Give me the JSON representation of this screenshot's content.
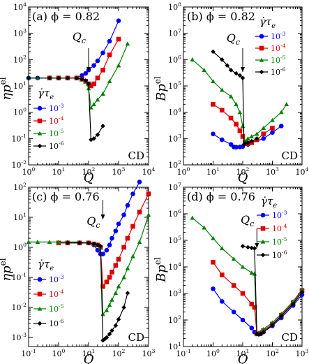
{
  "chart_data": [
    {
      "type": "line",
      "panel_label": "(a)",
      "phi_text": "ϕ = 0.82",
      "corner_label": "CD",
      "xlabel": "Q",
      "ylabel": "ηp^el",
      "xlim": [
        1,
        10000
      ],
      "ylim": [
        0.01,
        10000
      ],
      "xscale": "log",
      "yscale": "log",
      "x_tick_labels": [
        "10^0",
        "10^1",
        "10^2",
        "10^3",
        "10^4"
      ],
      "y_tick_labels": [
        "10^-2",
        "10^-1",
        "10^0",
        "10^1",
        "10^2",
        "10^3",
        "10^4"
      ],
      "annotation": {
        "text": "Qc",
        "x": 100
      },
      "legend": {
        "title": "γ̇τe",
        "placement": "center-left"
      },
      "series": [
        {
          "name": "10^-3",
          "color": "#0000ff",
          "marker": "circle",
          "x": [
            1,
            2,
            5,
            10,
            20,
            40,
            60,
            80,
            100,
            150,
            200,
            300,
            500,
            1000
          ],
          "y": [
            20,
            20,
            20,
            20,
            20,
            20,
            25,
            30,
            40,
            60,
            90,
            180,
            500,
            3000
          ]
        },
        {
          "name": "10^-4",
          "color": "#dd0000",
          "marker": "square",
          "x": [
            5,
            10,
            20,
            40,
            60,
            80,
            100,
            120,
            150,
            200,
            300,
            500,
            1000
          ],
          "y": [
            20,
            20,
            20,
            20,
            18,
            15,
            12,
            10,
            12,
            20,
            40,
            150,
            600
          ]
        },
        {
          "name": "10^-5",
          "color": "#008000",
          "marker": "triangle",
          "x": [
            1,
            2,
            5,
            10,
            20,
            40,
            60,
            80,
            100,
            120,
            150,
            200,
            300,
            500,
            1000,
            2000
          ],
          "y": [
            20,
            20,
            20,
            20,
            20,
            20,
            18,
            15,
            8,
            1.5,
            2,
            3,
            5,
            15,
            60,
            400
          ]
        },
        {
          "name": "10^-6",
          "color": "#000000",
          "marker": "diamond",
          "x": [
            1,
            5,
            10,
            20,
            40,
            60,
            80,
            100,
            120,
            150,
            200,
            300
          ],
          "y": [
            20,
            20,
            20,
            20,
            20,
            18,
            16,
            12,
            0.09,
            0.1,
            0.14,
            0.3
          ]
        }
      ]
    },
    {
      "type": "line",
      "panel_label": "(b)",
      "phi_text": "ϕ = 0.82",
      "corner_label": "CD",
      "xlabel": "Q",
      "ylabel": "Bp^el",
      "xlim": [
        1,
        10000
      ],
      "ylim": [
        100,
        100000000
      ],
      "xscale": "log",
      "yscale": "log",
      "x_tick_labels": [
        "10^0",
        "10^1",
        "10^2",
        "10^3",
        "10^4"
      ],
      "y_tick_labels": [
        "10^2",
        "10^3",
        "10^4",
        "10^5",
        "10^6",
        "10^7",
        "10^8"
      ],
      "annotation": {
        "text": "Qc",
        "x": 100
      },
      "legend": {
        "title": "γ̇τe",
        "placement": "top-right"
      },
      "series": [
        {
          "name": "10^-3",
          "color": "#0000ff",
          "marker": "circle",
          "x": [
            10,
            20,
            40,
            50,
            60,
            80,
            100,
            150,
            200,
            500,
            1000,
            2000
          ],
          "y": [
            1500,
            900,
            600,
            480,
            470,
            480,
            500,
            600,
            700,
            1000,
            1700,
            3000
          ]
        },
        {
          "name": "10^-4",
          "color": "#dd0000",
          "marker": "square",
          "x": [
            10,
            20,
            40,
            60,
            80,
            100,
            120,
            150,
            200,
            300,
            500,
            1000
          ],
          "y": [
            20000,
            12000,
            6000,
            3500,
            2000,
            1200,
            700,
            650,
            700,
            900,
            1500,
            2500
          ]
        },
        {
          "name": "10^-5",
          "color": "#008000",
          "marker": "triangle",
          "x": [
            2,
            5,
            10,
            20,
            40,
            60,
            80,
            100,
            120,
            150,
            200,
            300,
            500,
            1000,
            2000,
            3000
          ],
          "y": [
            1000000,
            400000,
            150000,
            70000,
            40000,
            20000,
            10000,
            3000,
            800,
            1000,
            1200,
            1500,
            2500,
            5000,
            10000,
            20000
          ]
        },
        {
          "name": "10^-6",
          "color": "#000000",
          "marker": "diamond",
          "x": [
            10,
            20,
            30,
            40,
            60,
            80,
            100,
            110,
            120,
            150,
            200,
            300
          ],
          "y": [
            2000000,
            1000000,
            600000,
            400000,
            300000,
            250000,
            200000,
            600,
            650,
            700,
            800,
            1000
          ]
        }
      ]
    },
    {
      "type": "line",
      "panel_label": "(c)",
      "phi_text": "ϕ = 0.76",
      "corner_label": "CD",
      "xlabel": "Q",
      "ylabel": "ηp^el",
      "xlim": [
        0.1,
        1000
      ],
      "ylim": [
        0.0005,
        100
      ],
      "xscale": "log",
      "yscale": "log",
      "x_tick_labels": [
        "10^-1",
        "10^0",
        "10^1",
        "10^2",
        "10^3"
      ],
      "y_tick_labels": [
        "10^-3",
        "10^-2",
        "10^-1",
        "10^0",
        "10^1",
        "10^2"
      ],
      "annotation": {
        "text": "Qc",
        "x": 30
      },
      "legend": {
        "title": "γ̇τe",
        "placement": "center-left"
      },
      "series": [
        {
          "name": "10^-3",
          "color": "#0000ff",
          "marker": "circle",
          "x": [
            1,
            2,
            5,
            10,
            15,
            20,
            25,
            30,
            40,
            50,
            60,
            80,
            100,
            150,
            200,
            300,
            500
          ],
          "y": [
            1.4,
            1.4,
            1.4,
            1.4,
            1.2,
            0.8,
            0.6,
            0.6,
            0.8,
            1.2,
            2,
            3.5,
            6,
            12,
            25,
            60,
            150
          ]
        },
        {
          "name": "10^-4",
          "color": "#dd0000",
          "marker": "square",
          "x": [
            1,
            2,
            5,
            10,
            15,
            20,
            25,
            30,
            40,
            50,
            60,
            80,
            100,
            150,
            200,
            300,
            500,
            1000
          ],
          "y": [
            1.4,
            1.4,
            1.4,
            1.4,
            1.3,
            1.2,
            1,
            0.05,
            0.07,
            0.1,
            0.15,
            0.25,
            0.4,
            1,
            2,
            5,
            15,
            60
          ]
        },
        {
          "name": "10^-5",
          "color": "#008000",
          "marker": "triangle",
          "x": [
            0.1,
            0.2,
            0.5,
            1,
            2,
            5,
            10,
            15,
            20,
            25,
            30,
            40,
            50,
            60,
            80,
            100,
            150,
            200,
            300,
            500,
            1000
          ],
          "y": [
            1.5,
            1.5,
            1.5,
            1.5,
            1.5,
            1.5,
            1.4,
            1.3,
            1.2,
            1.0,
            0.006,
            0.008,
            0.012,
            0.018,
            0.03,
            0.05,
            0.1,
            0.2,
            0.5,
            1.5,
            12
          ]
        },
        {
          "name": "10^-6",
          "color": "#000000",
          "marker": "diamond",
          "x": [
            2,
            5,
            10,
            15,
            20,
            25,
            30,
            35,
            40,
            50,
            60,
            80,
            100,
            150,
            200
          ],
          "y": [
            1.4,
            1.4,
            1.4,
            1.3,
            1.2,
            1.1,
            0.0008,
            0.0009,
            0.001,
            0.0013,
            0.0017,
            0.0025,
            0.004,
            0.01,
            0.03
          ]
        }
      ]
    },
    {
      "type": "line",
      "panel_label": "(d)",
      "phi_text": "ϕ = 0.76",
      "corner_label": "CD",
      "xlabel": "Q",
      "ylabel": "Bp^el",
      "xlim": [
        0.1,
        1000
      ],
      "ylim": [
        10,
        10000000
      ],
      "xscale": "log",
      "yscale": "log",
      "x_tick_labels": [
        "10^-1",
        "10^0",
        "10^1",
        "10^2",
        "10^3"
      ],
      "y_tick_labels": [
        "10^1",
        "10^2",
        "10^3",
        "10^4",
        "10^5",
        "10^6",
        "10^7"
      ],
      "annotation": {
        "text": "Qc",
        "x": 30
      },
      "legend": {
        "title": "γ̇τe",
        "placement": "top-right"
      },
      "series": [
        {
          "name": "10^-3",
          "color": "#0000ff",
          "marker": "circle",
          "x": [
            1,
            2,
            5,
            10,
            20,
            25,
            30,
            40,
            50,
            100,
            200,
            500,
            1000
          ],
          "y": [
            1500,
            500,
            200,
            100,
            50,
            35,
            30,
            30,
            35,
            60,
            120,
            350,
            900
          ]
        },
        {
          "name": "10^-4",
          "color": "#dd0000",
          "marker": "square",
          "x": [
            1,
            2,
            5,
            10,
            20,
            25,
            30,
            40,
            50,
            100,
            200,
            500,
            1000
          ],
          "y": [
            15000,
            5000,
            2000,
            1000,
            400,
            300,
            30,
            32,
            40,
            70,
            150,
            450,
            1300
          ]
        },
        {
          "name": "10^-5",
          "color": "#008000",
          "marker": "triangle",
          "x": [
            0.2,
            0.5,
            1,
            2,
            5,
            10,
            20,
            25,
            30,
            40,
            50,
            100,
            200,
            500,
            1000
          ],
          "y": [
            700000,
            300000,
            120000,
            50000,
            20000,
            10000,
            6000,
            5500,
            30,
            35,
            45,
            80,
            170,
            500,
            1400
          ]
        },
        {
          "name": "10^-6",
          "color": "#000000",
          "marker": "diamond",
          "x": [
            10,
            15,
            20,
            25,
            30,
            35,
            40,
            50,
            100,
            200,
            500,
            1000
          ],
          "y": [
            60000,
            55000,
            52000,
            50000,
            30,
            28,
            30,
            35,
            65,
            140,
            400,
            1100
          ]
        }
      ]
    }
  ]
}
